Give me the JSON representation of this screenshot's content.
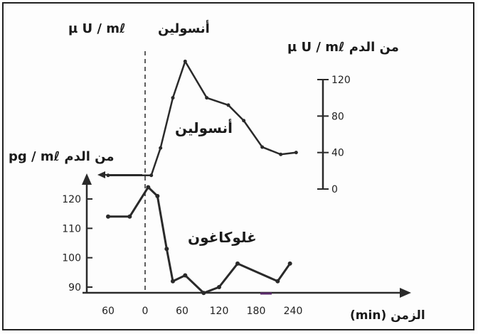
{
  "labels": {
    "insulin_unit_left": "µ U / mℓ",
    "insulin_word_top": "أنسولين",
    "insulin_unit_right": "µ U / mℓ من الدم",
    "glucagon_unit": "pg / mℓ من الدم",
    "insulin_curve_label": "أنسولين",
    "glucagon_curve_label": "غلوكاغون",
    "xaxis_label": "الزمن (min)"
  },
  "colors": {
    "ink": "#2a2a2a",
    "accent": "#5a2a6a"
  },
  "chart_data": {
    "type": "line",
    "x": {
      "label": "الزمن (min)",
      "ticks": [
        {
          "label": "60",
          "value": -60
        },
        {
          "label": "0",
          "value": 0
        },
        {
          "label": "60",
          "value": 60
        },
        {
          "label": "120",
          "value": 120
        },
        {
          "label": "180",
          "value": 180
        },
        {
          "label": "240",
          "value": 240
        }
      ],
      "range": [
        -70,
        260
      ]
    },
    "insulin": {
      "unit": "µ U / mℓ من الدم",
      "ylim": [
        0,
        120
      ],
      "yticks": [
        0,
        40,
        80,
        120
      ],
      "points": [
        [
          -60,
          15
        ],
        [
          10,
          15
        ],
        [
          25,
          45
        ],
        [
          45,
          100
        ],
        [
          65,
          140
        ],
        [
          100,
          100
        ],
        [
          135,
          92
        ],
        [
          160,
          75
        ],
        [
          190,
          46
        ],
        [
          220,
          38
        ],
        [
          245,
          40
        ]
      ]
    },
    "glucagon": {
      "unit": "pg / mℓ من الدم",
      "ylim": [
        88,
        125
      ],
      "yticks": [
        90,
        100,
        110,
        120
      ],
      "points": [
        [
          -60,
          114
        ],
        [
          -25,
          114
        ],
        [
          5,
          124
        ],
        [
          20,
          121
        ],
        [
          35,
          103
        ],
        [
          45,
          92
        ],
        [
          65,
          94
        ],
        [
          95,
          88
        ],
        [
          120,
          90
        ],
        [
          150,
          98
        ],
        [
          215,
          92
        ],
        [
          235,
          98
        ]
      ]
    }
  }
}
